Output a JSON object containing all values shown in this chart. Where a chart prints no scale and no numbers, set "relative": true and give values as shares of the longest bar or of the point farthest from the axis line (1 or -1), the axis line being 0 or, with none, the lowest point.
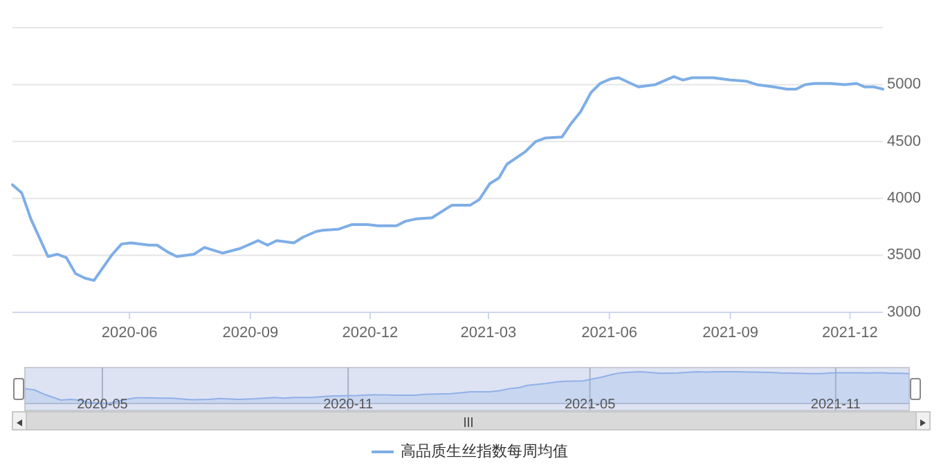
{
  "chart_data": [
    {
      "type": "line",
      "xlim": [
        "2020-03-04",
        "2021-12-26"
      ],
      "xticks": [
        "2020-06",
        "2020-09",
        "2020-12",
        "2021-03",
        "2021-06",
        "2021-09",
        "2021-12"
      ],
      "ylim": [
        3000,
        5500
      ],
      "yticks": [
        3000,
        3500,
        4000,
        4500,
        5000,
        {
          "value": 5500,
          "label": null
        }
      ],
      "grid": "y",
      "legend": "bottom",
      "marker": "none",
      "line_style": "solid",
      "x": [
        "2020-03-04",
        "2020-03-11",
        "2020-03-18",
        "2020-03-31",
        "2020-04-07",
        "2020-04-14",
        "2020-04-21",
        "2020-04-28",
        "2020-05-05",
        "2020-05-19",
        "2020-05-26",
        "2020-06-02",
        "2020-06-16",
        "2020-06-22",
        "2020-06-30",
        "2020-07-07",
        "2020-07-20",
        "2020-07-28",
        "2020-08-11",
        "2020-08-24",
        "2020-09-07",
        "2020-09-14",
        "2020-09-21",
        "2020-10-04",
        "2020-10-11",
        "2020-10-21",
        "2020-10-26",
        "2020-11-07",
        "2020-11-17",
        "2020-11-29",
        "2020-12-07",
        "2020-12-21",
        "2020-12-28",
        "2021-01-05",
        "2021-01-17",
        "2021-02-01",
        "2021-02-15",
        "2021-02-22",
        "2021-03-02",
        "2021-03-09",
        "2021-03-15",
        "2021-03-29",
        "2021-04-06",
        "2021-04-13",
        "2021-04-26",
        "2021-05-03",
        "2021-05-10",
        "2021-05-18",
        "2021-05-25",
        "2021-06-02",
        "2021-06-08",
        "2021-06-23",
        "2021-07-06",
        "2021-07-20",
        "2021-07-27",
        "2021-08-03",
        "2021-08-19",
        "2021-09-01",
        "2021-09-13",
        "2021-09-21",
        "2021-10-04",
        "2021-10-14",
        "2021-10-21",
        "2021-10-28",
        "2021-11-04",
        "2021-11-16",
        "2021-11-27",
        "2021-12-06",
        "2021-12-12",
        "2021-12-19",
        "2021-12-26"
      ],
      "series": [
        {
          "name": "高品质生丝指数每周均值",
          "color": "#7eaee6",
          "values": [
            4120,
            4050,
            3820,
            3490,
            3510,
            3480,
            3340,
            3300,
            3280,
            3510,
            3600,
            3610,
            3590,
            3590,
            3530,
            3490,
            3510,
            3570,
            3520,
            3560,
            3630,
            3590,
            3630,
            3610,
            3660,
            3710,
            3720,
            3730,
            3770,
            3770,
            3760,
            3760,
            3800,
            3820,
            3830,
            3940,
            3940,
            3990,
            4130,
            4180,
            4300,
            4410,
            4500,
            4530,
            4540,
            4660,
            4760,
            4930,
            5010,
            5050,
            5060,
            4980,
            5000,
            5070,
            5040,
            5060,
            5060,
            5040,
            5030,
            5000,
            4980,
            4960,
            4960,
            5000,
            5010,
            5010,
            5000,
            5010,
            4980,
            4980,
            4960
          ]
        }
      ]
    },
    {
      "type": "area",
      "xlim": [
        "2020-03-04",
        "2021-12-26"
      ],
      "xticks": [
        "2020-05",
        "2020-11",
        "2021-05",
        "2021-11"
      ],
      "relative": true,
      "tick_labels": "x",
      "grid": "x",
      "x": [
        "2020-03-04",
        "2020-03-11",
        "2020-03-18",
        "2020-03-31",
        "2020-04-07",
        "2020-04-14",
        "2020-04-21",
        "2020-04-28",
        "2020-05-05",
        "2020-05-19",
        "2020-05-26",
        "2020-06-02",
        "2020-06-16",
        "2020-06-22",
        "2020-06-30",
        "2020-07-07",
        "2020-07-20",
        "2020-07-28",
        "2020-08-11",
        "2020-08-24",
        "2020-09-07",
        "2020-09-14",
        "2020-09-21",
        "2020-10-04",
        "2020-10-11",
        "2020-10-21",
        "2020-10-26",
        "2020-11-07",
        "2020-11-17",
        "2020-11-29",
        "2020-12-07",
        "2020-12-21",
        "2020-12-28",
        "2021-01-05",
        "2021-01-17",
        "2021-02-01",
        "2021-02-15",
        "2021-02-22",
        "2021-03-02",
        "2021-03-09",
        "2021-03-15",
        "2021-03-29",
        "2021-04-06",
        "2021-04-13",
        "2021-04-26",
        "2021-05-03",
        "2021-05-10",
        "2021-05-18",
        "2021-05-25",
        "2021-06-02",
        "2021-06-08",
        "2021-06-23",
        "2021-07-06",
        "2021-07-20",
        "2021-07-27",
        "2021-08-03",
        "2021-08-19",
        "2021-09-01",
        "2021-09-13",
        "2021-09-21",
        "2021-10-04",
        "2021-10-14",
        "2021-10-21",
        "2021-10-28",
        "2021-11-04",
        "2021-11-16",
        "2021-11-27",
        "2021-12-06",
        "2021-12-12",
        "2021-12-19",
        "2021-12-26"
      ],
      "series": [
        {
          "color": "#8fb0e8",
          "values": [
            0.47,
            0.43,
            0.3,
            0.11,
            0.13,
            0.11,
            0.03,
            0.01,
            0,
            0.13,
            0.18,
            0.18,
            0.17,
            0.17,
            0.14,
            0.12,
            0.13,
            0.16,
            0.13,
            0.15,
            0.19,
            0.17,
            0.19,
            0.19,
            0.21,
            0.24,
            0.24,
            0.25,
            0.27,
            0.27,
            0.26,
            0.26,
            0.29,
            0.3,
            0.31,
            0.37,
            0.37,
            0.4,
            0.47,
            0.5,
            0.57,
            0.63,
            0.68,
            0.7,
            0.71,
            0.77,
            0.83,
            0.92,
            0.97,
            0.99,
            1,
            0.95,
            0.96,
            1,
            0.99,
            1,
            1,
            0.99,
            0.98,
            0.96,
            0.95,
            0.94,
            0.94,
            0.96,
            0.97,
            0.97,
            0.96,
            0.97,
            0.95,
            0.95,
            0.94
          ]
        }
      ]
    }
  ]
}
